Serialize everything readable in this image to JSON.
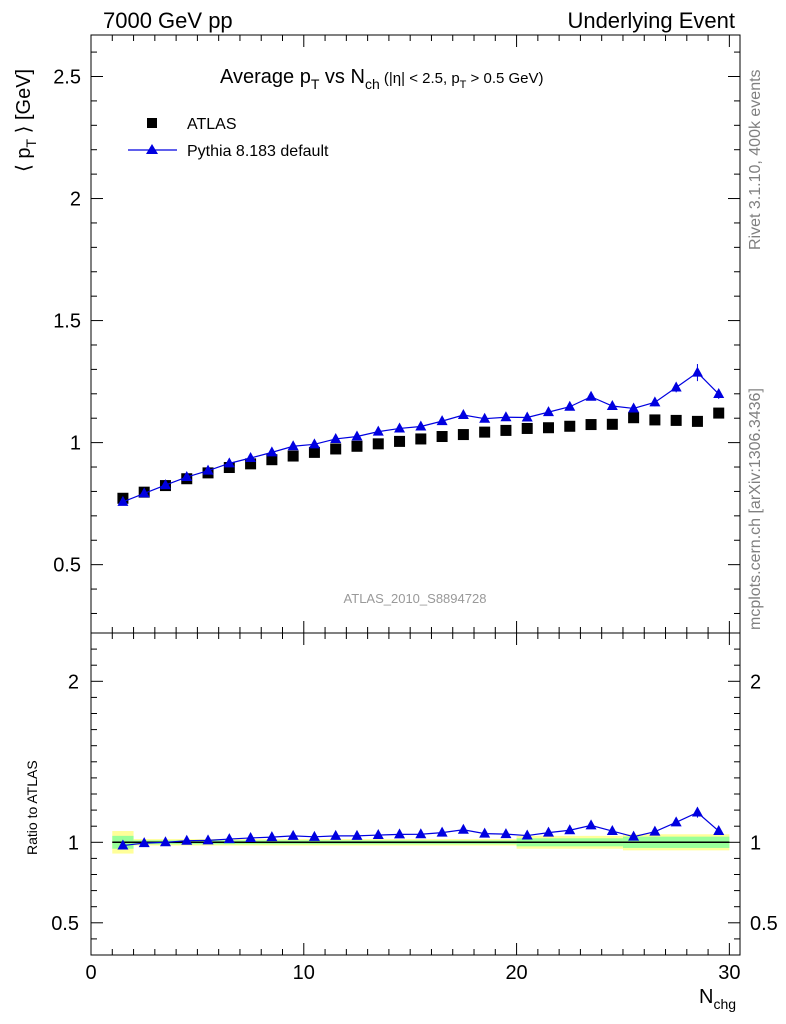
{
  "header": {
    "left": "7000 GeV pp",
    "right": "Underlying Event"
  },
  "side_labels": {
    "rivet": "Rivet 3.1.10,  400k events",
    "mcplots": "mcplots.cern.ch [arXiv:1306.3436]"
  },
  "chart_data": [
    {
      "type": "scatter",
      "panel": "main",
      "title_parts": {
        "pre": "Average p",
        "sub1": "T",
        "mid": " vs N",
        "sub2": "ch",
        "cut1": " (|η| < 2.5, p",
        "cut_sub": "T",
        "cut2": " > 0.5 GeV)"
      },
      "ylabel_parts": {
        "pre": "⟨ p",
        "sub": "T",
        "post": " ⟩ [GeV]"
      },
      "watermark": "ATLAS_2010_S8894728",
      "ylim": [
        0.22,
        2.67
      ],
      "xlim": [
        0,
        30.5
      ],
      "yticks": [
        "0.5",
        "1",
        "1.5",
        "2",
        "2.5"
      ],
      "legend_position": "top-left",
      "x": [
        1.5,
        2.5,
        3.5,
        4.5,
        5.5,
        6.5,
        7.5,
        8.5,
        9.5,
        10.5,
        11.5,
        12.5,
        13.5,
        14.5,
        15.5,
        16.5,
        17.5,
        18.5,
        19.5,
        20.5,
        21.5,
        22.5,
        23.5,
        24.5,
        25.5,
        26.5,
        27.5,
        28.5,
        29.5
      ],
      "series": [
        {
          "name": "ATLAS",
          "marker": "square",
          "color": "#000000",
          "values": [
            0.772,
            0.797,
            0.824,
            0.852,
            0.876,
            0.898,
            0.913,
            0.93,
            0.945,
            0.96,
            0.974,
            0.985,
            0.995,
            1.005,
            1.015,
            1.025,
            1.033,
            1.043,
            1.05,
            1.058,
            1.061,
            1.067,
            1.074,
            1.075,
            1.102,
            1.093,
            1.091,
            1.087,
            1.121
          ]
        },
        {
          "name": "Pythia 8.183 default",
          "marker": "triangle",
          "color": "#0000e0",
          "values": [
            0.757,
            0.792,
            0.826,
            0.859,
            0.885,
            0.915,
            0.937,
            0.96,
            0.985,
            0.993,
            1.015,
            1.025,
            1.045,
            1.058,
            1.066,
            1.088,
            1.113,
            1.098,
            1.104,
            1.103,
            1.125,
            1.147,
            1.188,
            1.15,
            1.14,
            1.165,
            1.226,
            1.287,
            1.199
          ],
          "errors": [
            0.005,
            0.004,
            0.004,
            0.004,
            0.004,
            0.004,
            0.004,
            0.004,
            0.004,
            0.004,
            0.004,
            0.004,
            0.005,
            0.005,
            0.005,
            0.006,
            0.007,
            0.007,
            0.008,
            0.008,
            0.009,
            0.01,
            0.012,
            0.012,
            0.014,
            0.016,
            0.02,
            0.035,
            0.02
          ]
        }
      ]
    },
    {
      "type": "scatter",
      "panel": "ratio",
      "ylabel": "Ratio to ATLAS",
      "ylim": [
        0.3,
        2.3
      ],
      "xlim": [
        0,
        30.5
      ],
      "xlabel_parts": {
        "pre": "N",
        "sub": "chg"
      },
      "xticks": [
        "0",
        "10",
        "20",
        "30"
      ],
      "yticks": [
        "0.5",
        "1",
        "2"
      ],
      "bands": {
        "x_edges": [
          1,
          2,
          20,
          25,
          30
        ],
        "yellow_half_width": [
          0.07,
          0.02,
          0.04,
          0.05
        ],
        "green_half_width": [
          0.04,
          0.012,
          0.025,
          0.035
        ],
        "yellow_color": "#ffff99",
        "green_color": "#99ff99"
      },
      "x": [
        1.5,
        2.5,
        3.5,
        4.5,
        5.5,
        6.5,
        7.5,
        8.5,
        9.5,
        10.5,
        11.5,
        12.5,
        13.5,
        14.5,
        15.5,
        16.5,
        17.5,
        18.5,
        19.5,
        20.5,
        21.5,
        22.5,
        23.5,
        24.5,
        25.5,
        26.5,
        27.5,
        28.5,
        29.5
      ],
      "series": [
        {
          "name": "Pythia 8.183 default",
          "marker": "triangle",
          "color": "#0000e0",
          "values": [
            0.98,
            0.995,
            1.0,
            1.01,
            1.012,
            1.02,
            1.027,
            1.032,
            1.04,
            1.034,
            1.04,
            1.04,
            1.045,
            1.049,
            1.05,
            1.06,
            1.078,
            1.054,
            1.051,
            1.042,
            1.06,
            1.075,
            1.105,
            1.07,
            1.035,
            1.066,
            1.124,
            1.185,
            1.07
          ],
          "errors": [
            0.007,
            0.005,
            0.005,
            0.005,
            0.005,
            0.005,
            0.005,
            0.005,
            0.005,
            0.005,
            0.005,
            0.005,
            0.005,
            0.005,
            0.005,
            0.006,
            0.007,
            0.007,
            0.008,
            0.008,
            0.009,
            0.01,
            0.011,
            0.012,
            0.013,
            0.015,
            0.018,
            0.032,
            0.018
          ]
        }
      ]
    }
  ]
}
